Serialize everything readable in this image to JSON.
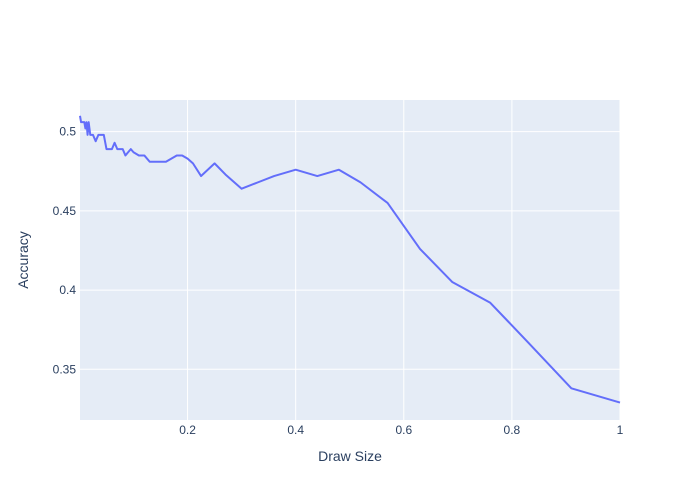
{
  "chart_data": {
    "type": "line",
    "title": "",
    "xlabel": "Draw Size",
    "ylabel": "Accuracy",
    "xlim": [
      0.001,
      1.0
    ],
    "ylim": [
      0.318,
      0.52
    ],
    "x_ticks": [
      0.2,
      0.4,
      0.6,
      0.8,
      1.0
    ],
    "x_tick_labels": [
      "0.2",
      "0.4",
      "0.6",
      "0.8",
      "1"
    ],
    "y_ticks": [
      0.35,
      0.4,
      0.45,
      0.5
    ],
    "y_tick_labels": [
      "0.35",
      "0.4",
      "0.45",
      "0.5"
    ],
    "grid": true,
    "legend": "none",
    "colors": {
      "line": "#636efa",
      "plot_bg": "#e5ecf6",
      "paper_bg": "#ffffff",
      "text": "#2a3f5f"
    },
    "series": [
      {
        "x": [
          0.001,
          0.003,
          0.005,
          0.007,
          0.009,
          0.011,
          0.013,
          0.015,
          0.017,
          0.02,
          0.025,
          0.03,
          0.035,
          0.04,
          0.045,
          0.05,
          0.055,
          0.06,
          0.065,
          0.07,
          0.075,
          0.08,
          0.085,
          0.09,
          0.095,
          0.1,
          0.11,
          0.12,
          0.13,
          0.14,
          0.15,
          0.16,
          0.17,
          0.18,
          0.19,
          0.2,
          0.21,
          0.225,
          0.25,
          0.27,
          0.3,
          0.33,
          0.36,
          0.4,
          0.44,
          0.48,
          0.52,
          0.57,
          0.63,
          0.69,
          0.76,
          0.83,
          0.91,
          1.0
        ],
        "y": [
          0.51,
          0.506,
          0.506,
          0.506,
          0.506,
          0.502,
          0.506,
          0.498,
          0.506,
          0.498,
          0.498,
          0.494,
          0.498,
          0.498,
          0.498,
          0.489,
          0.489,
          0.489,
          0.493,
          0.489,
          0.489,
          0.489,
          0.485,
          0.487,
          0.489,
          0.487,
          0.485,
          0.485,
          0.481,
          0.481,
          0.481,
          0.481,
          0.483,
          0.485,
          0.485,
          0.483,
          0.48,
          0.472,
          0.48,
          0.473,
          0.464,
          0.468,
          0.472,
          0.476,
          0.472,
          0.476,
          0.468,
          0.455,
          0.426,
          0.405,
          0.392,
          0.367,
          0.338,
          0.329
        ]
      }
    ]
  }
}
